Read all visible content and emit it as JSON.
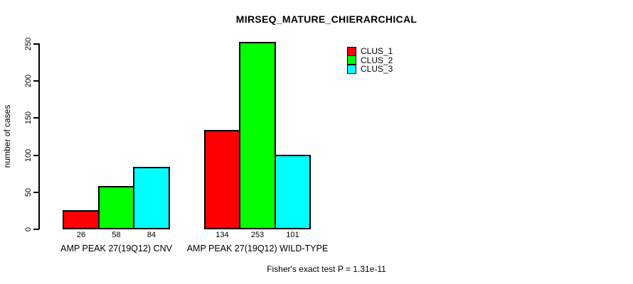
{
  "page": {
    "background": "#ffffff",
    "text_color": "#000000"
  },
  "chart_data": {
    "type": "bar",
    "title": "MIRSEQ_MATURE_CHIERARCHICAL",
    "xlabel": "",
    "ylabel": "number of cases",
    "categories": [
      "AMP PEAK 27(19Q12) CNV",
      "AMP PEAK 27(19Q12) WILD-TYPE"
    ],
    "series": [
      {
        "name": "CLUS_1",
        "color": "#ff0000",
        "values": [
          26,
          134
        ]
      },
      {
        "name": "CLUS_2",
        "color": "#00ff00",
        "values": [
          58,
          253
        ]
      },
      {
        "name": "CLUS_3",
        "color": "#00ffff",
        "values": [
          84,
          101
        ]
      }
    ],
    "bar_value_labels": [
      [
        "26",
        "58",
        "84"
      ],
      [
        "134",
        "253",
        "101"
      ]
    ],
    "yticks": [
      0,
      50,
      100,
      150,
      200,
      250
    ],
    "ylim": [
      0,
      250
    ],
    "grid": false,
    "legend": {
      "position": "top-right-inside",
      "entries": [
        {
          "label": "CLUS_1",
          "color": "#ff0000"
        },
        {
          "label": "CLUS_2",
          "color": "#00ff00"
        },
        {
          "label": "CLUS_3",
          "color": "#00ffff"
        }
      ]
    },
    "annotation": "Fisher's exact test P = 1.31e-11"
  }
}
